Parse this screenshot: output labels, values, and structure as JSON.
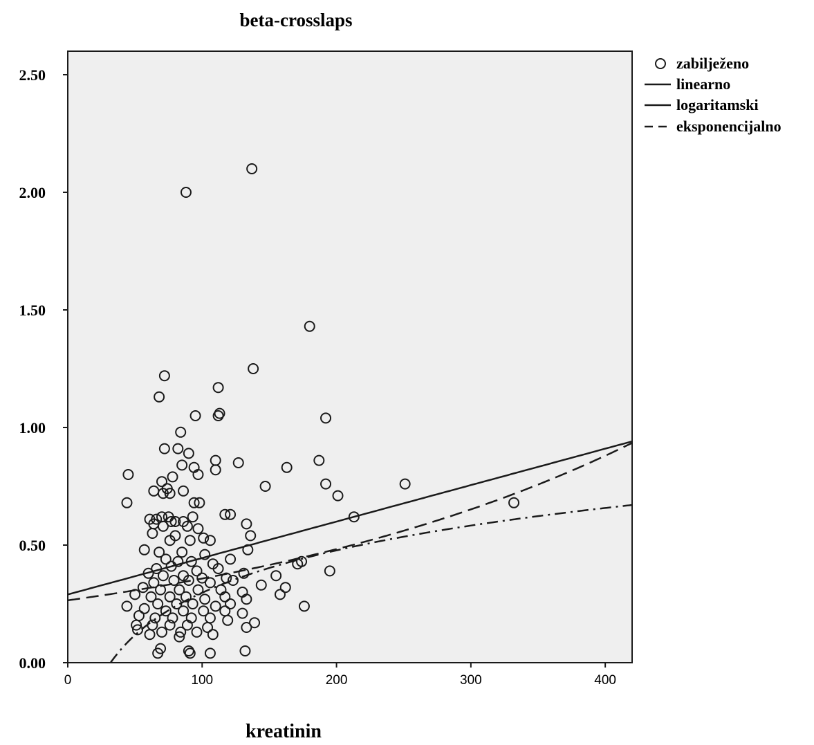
{
  "chart_data": {
    "type": "scatter",
    "title": "beta-crosslaps",
    "xlabel": "kreatinin",
    "ylabel": "",
    "xlim": [
      0,
      420
    ],
    "ylim": [
      0,
      2.6
    ],
    "x_ticks": [
      "0",
      "100",
      "200",
      "300",
      "400"
    ],
    "y_ticks": [
      "0.00",
      "0.50",
      "1.00",
      "1.50",
      "2.00",
      "2.50"
    ],
    "legend": {
      "position": "right",
      "entries": [
        {
          "label": "zabilježeno",
          "style": "circle"
        },
        {
          "label": "linearno",
          "style": "solid"
        },
        {
          "label": "logaritamski",
          "style": "dash-dot"
        },
        {
          "label": "eksponencijalno",
          "style": "dashed"
        }
      ]
    },
    "colors": {
      "plot_background": "#efefef",
      "ink": "#1a1a1a"
    },
    "fits": {
      "linearno": {
        "intercept": 0.29,
        "slope": 0.00155
      },
      "logaritamski": {
        "a": -0.9,
        "b": 0.26
      },
      "eksponencijalno": {
        "a": 0.265,
        "b": 0.003
      }
    },
    "points": [
      [
        137,
        2.1
      ],
      [
        88,
        2.0
      ],
      [
        180,
        1.43
      ],
      [
        72,
        1.22
      ],
      [
        138,
        1.25
      ],
      [
        68,
        1.13
      ],
      [
        112,
        1.17
      ],
      [
        95,
        1.05
      ],
      [
        113,
        1.06
      ],
      [
        112,
        1.05
      ],
      [
        192,
        1.04
      ],
      [
        84,
        0.98
      ],
      [
        72,
        0.91
      ],
      [
        82,
        0.91
      ],
      [
        90,
        0.89
      ],
      [
        187,
        0.86
      ],
      [
        110,
        0.86
      ],
      [
        127,
        0.85
      ],
      [
        94,
        0.83
      ],
      [
        85,
        0.84
      ],
      [
        163,
        0.83
      ],
      [
        110,
        0.82
      ],
      [
        45,
        0.8
      ],
      [
        97,
        0.8
      ],
      [
        78,
        0.79
      ],
      [
        70,
        0.77
      ],
      [
        251,
        0.76
      ],
      [
        147,
        0.75
      ],
      [
        192,
        0.76
      ],
      [
        74,
        0.74
      ],
      [
        64,
        0.73
      ],
      [
        71,
        0.72
      ],
      [
        86,
        0.73
      ],
      [
        76,
        0.72
      ],
      [
        201,
        0.71
      ],
      [
        44,
        0.68
      ],
      [
        94,
        0.68
      ],
      [
        98,
        0.68
      ],
      [
        332,
        0.68
      ],
      [
        117,
        0.63
      ],
      [
        121,
        0.63
      ],
      [
        213,
        0.62
      ],
      [
        61,
        0.61
      ],
      [
        66,
        0.61
      ],
      [
        70,
        0.62
      ],
      [
        75,
        0.62
      ],
      [
        80,
        0.6
      ],
      [
        86,
        0.6
      ],
      [
        93,
        0.62
      ],
      [
        64,
        0.59
      ],
      [
        71,
        0.58
      ],
      [
        77,
        0.6
      ],
      [
        89,
        0.58
      ],
      [
        133,
        0.59
      ],
      [
        63,
        0.55
      ],
      [
        80,
        0.54
      ],
      [
        97,
        0.57
      ],
      [
        136,
        0.54
      ],
      [
        76,
        0.52
      ],
      [
        91,
        0.52
      ],
      [
        101,
        0.53
      ],
      [
        106,
        0.52
      ],
      [
        57,
        0.48
      ],
      [
        68,
        0.47
      ],
      [
        85,
        0.47
      ],
      [
        102,
        0.46
      ],
      [
        121,
        0.44
      ],
      [
        134,
        0.48
      ],
      [
        73,
        0.44
      ],
      [
        82,
        0.43
      ],
      [
        92,
        0.43
      ],
      [
        108,
        0.42
      ],
      [
        66,
        0.4
      ],
      [
        77,
        0.41
      ],
      [
        96,
        0.39
      ],
      [
        112,
        0.4
      ],
      [
        60,
        0.38
      ],
      [
        71,
        0.37
      ],
      [
        86,
        0.37
      ],
      [
        100,
        0.36
      ],
      [
        118,
        0.36
      ],
      [
        131,
        0.38
      ],
      [
        174,
        0.43
      ],
      [
        171,
        0.42
      ],
      [
        195,
        0.39
      ],
      [
        155,
        0.37
      ],
      [
        64,
        0.34
      ],
      [
        79,
        0.35
      ],
      [
        90,
        0.35
      ],
      [
        106,
        0.34
      ],
      [
        123,
        0.35
      ],
      [
        144,
        0.33
      ],
      [
        56,
        0.32
      ],
      [
        69,
        0.31
      ],
      [
        83,
        0.31
      ],
      [
        97,
        0.31
      ],
      [
        114,
        0.31
      ],
      [
        130,
        0.3
      ],
      [
        162,
        0.32
      ],
      [
        50,
        0.29
      ],
      [
        62,
        0.28
      ],
      [
        76,
        0.28
      ],
      [
        88,
        0.28
      ],
      [
        102,
        0.27
      ],
      [
        117,
        0.28
      ],
      [
        133,
        0.27
      ],
      [
        158,
        0.29
      ],
      [
        67,
        0.25
      ],
      [
        81,
        0.25
      ],
      [
        93,
        0.25
      ],
      [
        110,
        0.24
      ],
      [
        121,
        0.25
      ],
      [
        44,
        0.24
      ],
      [
        57,
        0.23
      ],
      [
        73,
        0.22
      ],
      [
        86,
        0.22
      ],
      [
        101,
        0.22
      ],
      [
        117,
        0.22
      ],
      [
        130,
        0.21
      ],
      [
        176,
        0.24
      ],
      [
        53,
        0.2
      ],
      [
        65,
        0.19
      ],
      [
        78,
        0.19
      ],
      [
        92,
        0.19
      ],
      [
        106,
        0.19
      ],
      [
        119,
        0.18
      ],
      [
        139,
        0.17
      ],
      [
        51,
        0.16
      ],
      [
        63,
        0.16
      ],
      [
        76,
        0.16
      ],
      [
        89,
        0.16
      ],
      [
        104,
        0.15
      ],
      [
        133,
        0.15
      ],
      [
        52,
        0.14
      ],
      [
        70,
        0.13
      ],
      [
        84,
        0.13
      ],
      [
        96,
        0.13
      ],
      [
        108,
        0.12
      ],
      [
        61,
        0.12
      ],
      [
        83,
        0.11
      ],
      [
        69,
        0.06
      ],
      [
        90,
        0.05
      ],
      [
        67,
        0.04
      ],
      [
        91,
        0.04
      ],
      [
        106,
        0.04
      ],
      [
        132,
        0.05
      ]
    ]
  }
}
